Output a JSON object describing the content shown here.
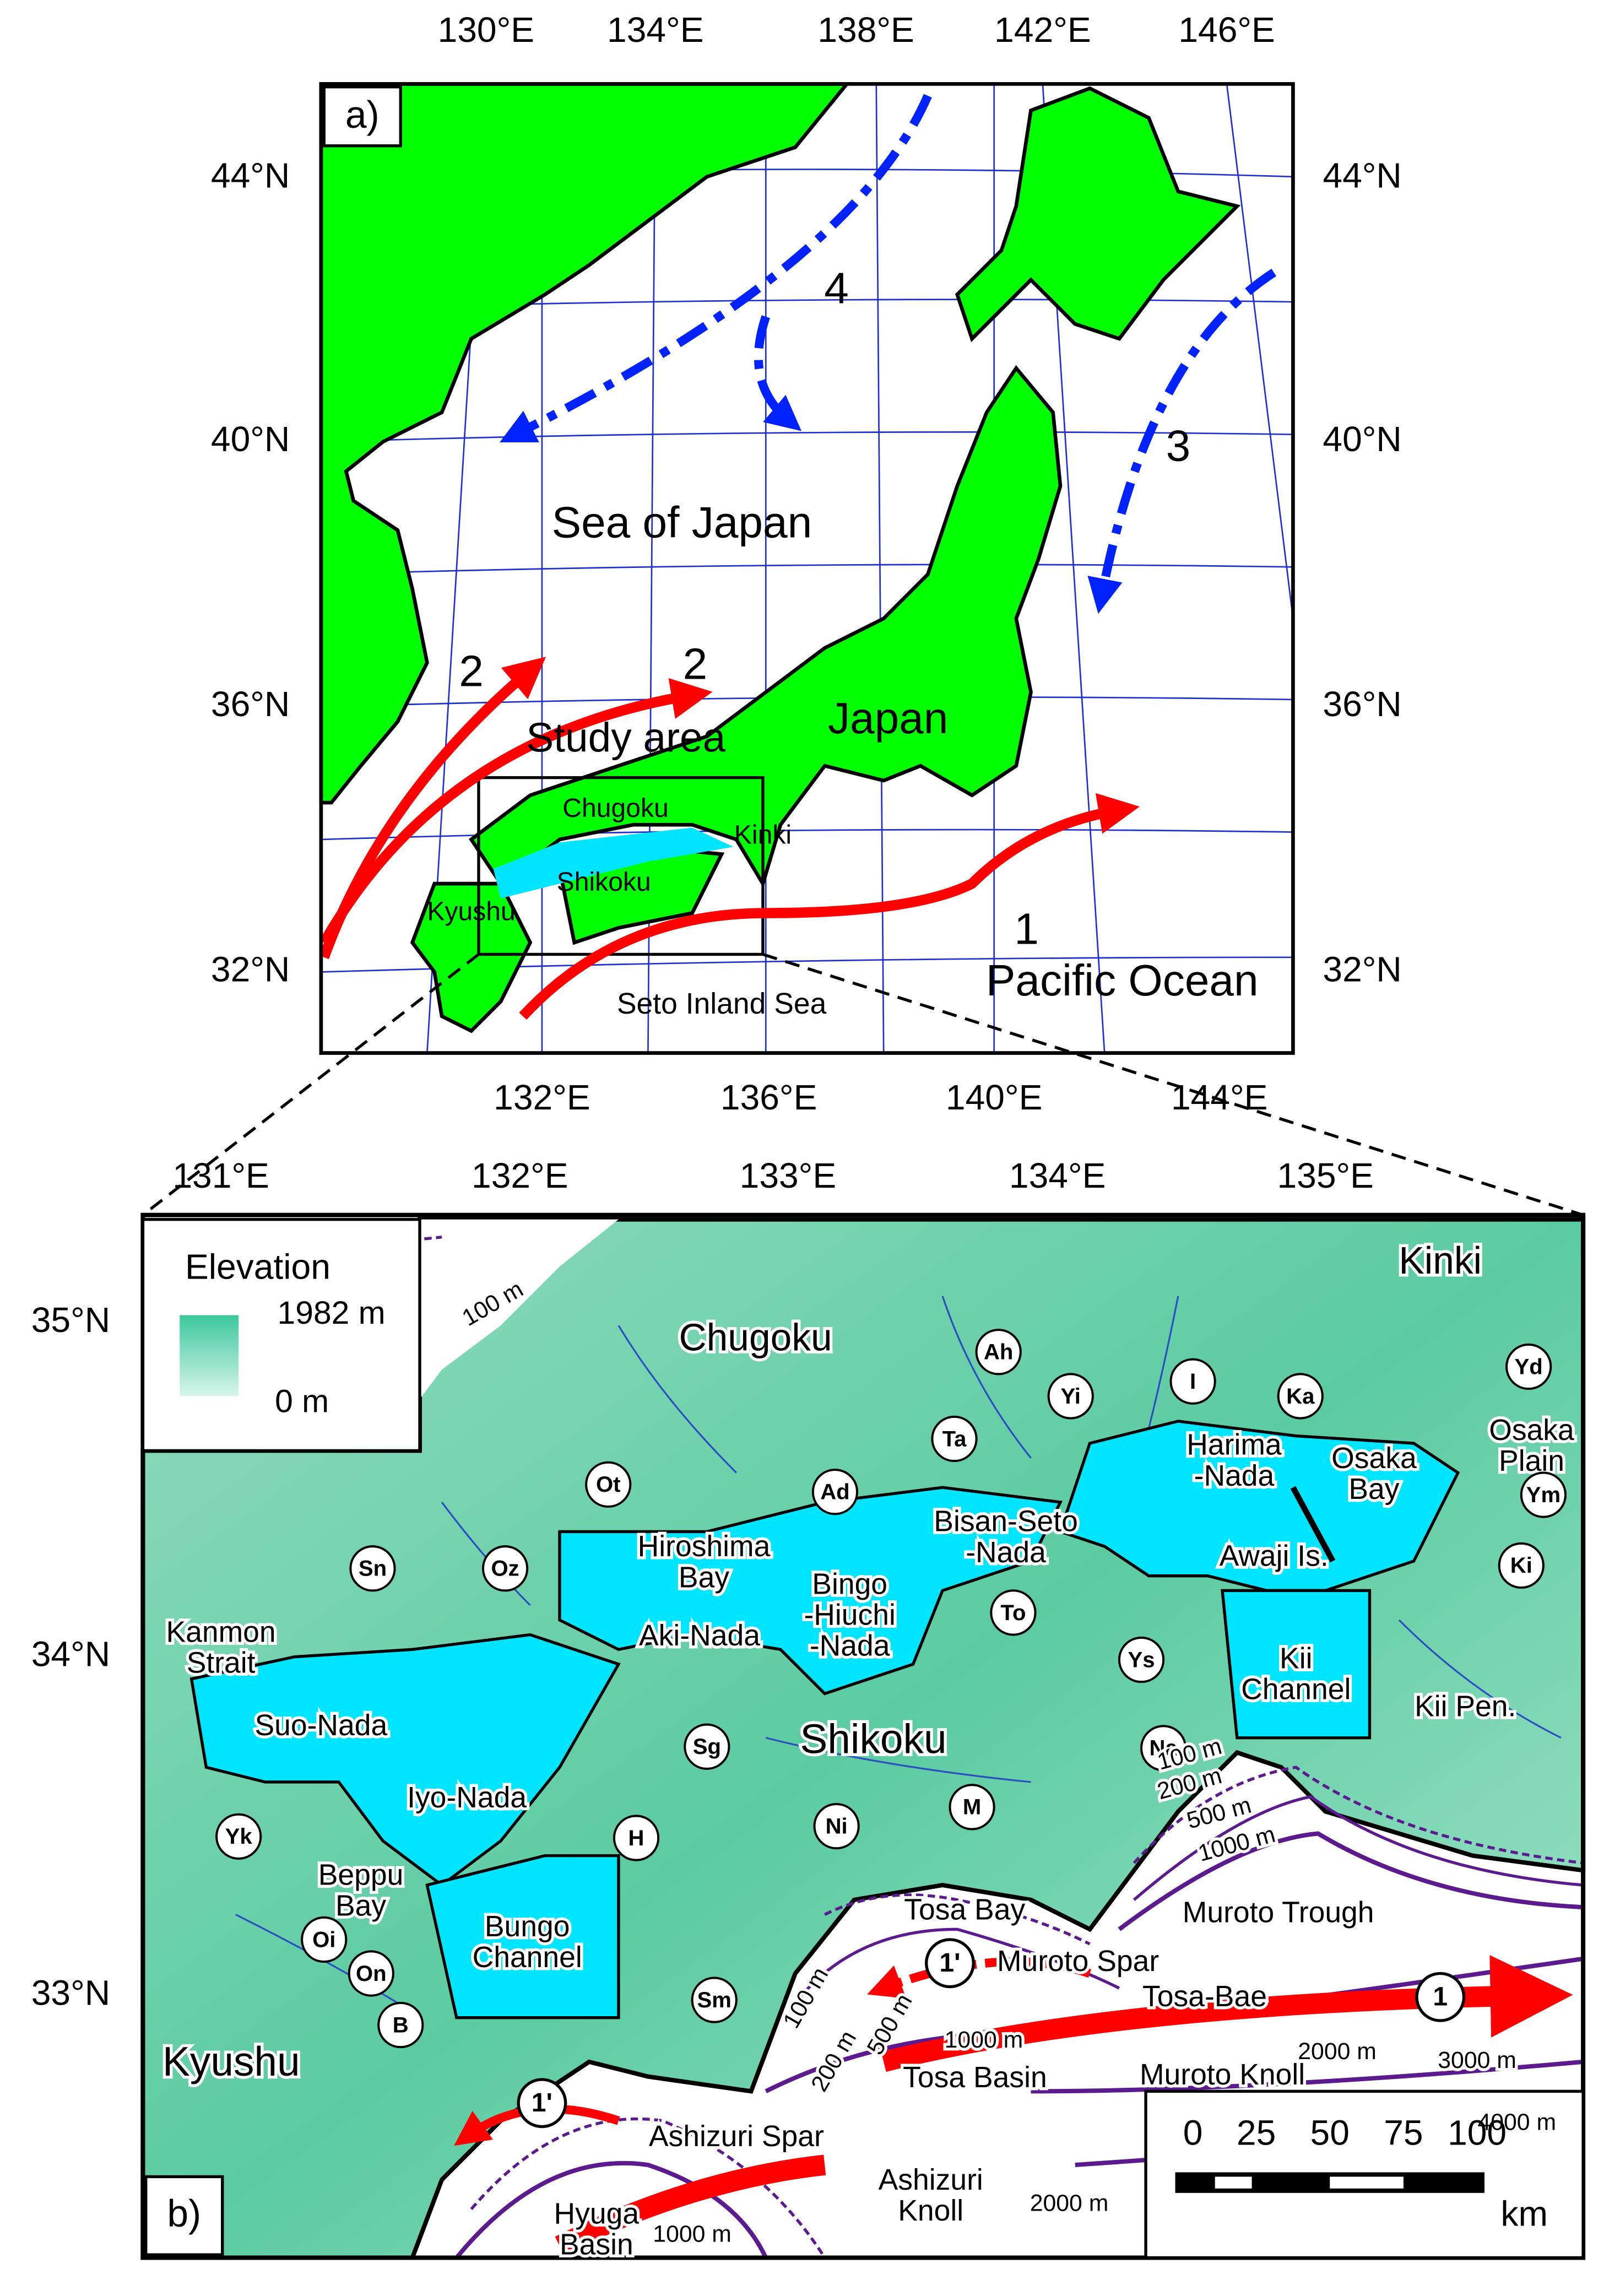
{
  "panel_a": {
    "label": "a)",
    "top_lon": [
      "130°E",
      "134°E",
      "138°E",
      "142°E",
      "146°E"
    ],
    "bottom_lon": [
      "132°E",
      "136°E",
      "140°E",
      "144°E"
    ],
    "left_lat": [
      "44°N",
      "40°N",
      "36°N",
      "32°N"
    ],
    "right_lat": [
      "44°N",
      "40°N",
      "36°N",
      "32°N"
    ],
    "places": [
      "Sea of Japan",
      "Japan",
      "Study area",
      "Chugoku",
      "Shikoku",
      "Kinki",
      "Kyushu",
      "Seto Inland Sea",
      "Pacific Ocean"
    ],
    "currents": [
      "1",
      "2",
      "2",
      "3",
      "4"
    ]
  },
  "panel_b": {
    "label": "b)",
    "top_lon": [
      "131°E",
      "132°E",
      "133°E",
      "134°E",
      "135°E"
    ],
    "left_lat": [
      "35°N",
      "34°N",
      "33°N"
    ],
    "legend": {
      "title": "Elevation",
      "max": "1982 m",
      "min": "0 m"
    },
    "places": [
      "Kinki",
      "Chugoku",
      "Osaka\nPlain",
      "Harima\n-Nada",
      "Osaka\nBay",
      "Awaji Is.",
      "Bisan-Seto\n-Nada",
      "Hiroshima\nBay",
      "Bingo\n-Hiuchi\n-Nada",
      "Aki-Nada",
      "Kanmon\nStrait",
      "Suo-Nada",
      "Shikoku",
      "Kii\nChannel",
      "Kii Pen.",
      "Iyo-Nada",
      "Beppu\nBay",
      "Bungo\nChannel",
      "Kyushu",
      "Tosa Bay",
      "Muroto Trough",
      "Muroto Spar",
      "Tosa-Bae",
      "Tosa Basin",
      "Muroto Knoll",
      "Ashizuri Spar",
      "Ashizuri\nKnoll",
      "Hyuga\nBasin"
    ],
    "stations": [
      "Ah",
      "Yi",
      "I",
      "Ka",
      "Yd",
      "Ta",
      "Ad",
      "Ot",
      "Ym",
      "Ki",
      "Sn",
      "Oz",
      "To",
      "Ys",
      "Sg",
      "Na",
      "M",
      "Ni",
      "Yk",
      "H",
      "Oi",
      "On",
      "B",
      "Sm"
    ],
    "depths": [
      "100 m",
      "100 m",
      "200 m",
      "500 m",
      "1000 m",
      "100 m",
      "200 m",
      "500 m",
      "1000 m",
      "2000 m",
      "3000 m",
      "4000 m",
      "2000 m",
      "1000 m"
    ],
    "scale": {
      "ticks": [
        "0",
        "25",
        "50",
        "75",
        "100"
      ],
      "unit": "km"
    },
    "currents": [
      "1",
      "1'",
      "1'"
    ]
  }
}
